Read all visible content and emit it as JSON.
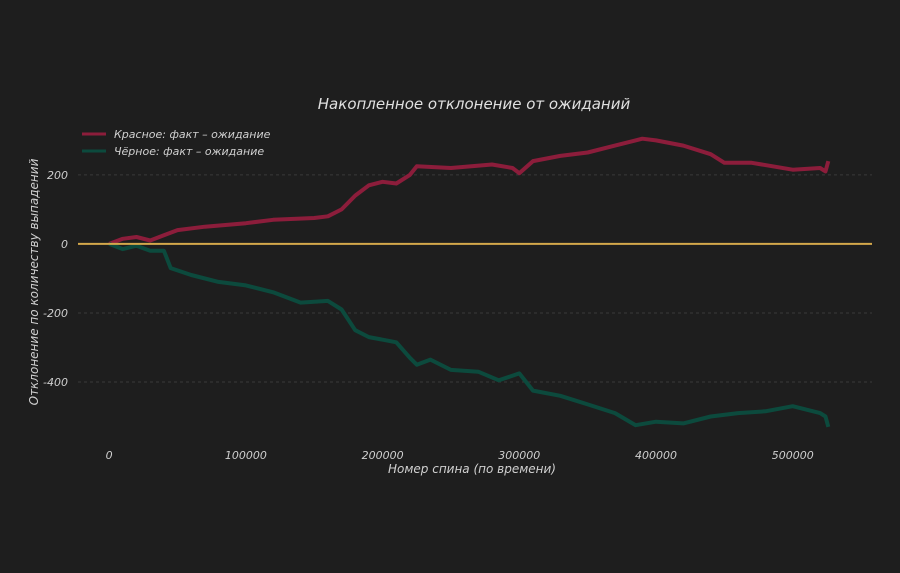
{
  "chart_data": {
    "type": "line",
    "title": "Накопленное отклонение от ожиданий",
    "xlabel": "Номер спина (по времени)",
    "ylabel": "Отклонение по количеству выпадений",
    "xlim": [
      -25000,
      558000
    ],
    "ylim": [
      -568,
      388
    ],
    "xticks": [
      0,
      100000,
      200000,
      300000,
      400000,
      500000
    ],
    "xtick_labels": [
      "0",
      "100000",
      "200000",
      "300000",
      "400000",
      "500000"
    ],
    "yticks": [
      200,
      0,
      -200,
      -400
    ],
    "ytick_labels": [
      "200",
      "0",
      "-200",
      "-400"
    ],
    "grid": "horizontal dashed",
    "legend_position": "top-left",
    "reference_line": {
      "y": 0,
      "color": "#d4a84b"
    },
    "series": [
      {
        "name": "Красное: факт – ожидание",
        "color": "#8c1d3b",
        "x": [
          0,
          10000,
          20000,
          30000,
          40000,
          50000,
          70000,
          100000,
          120000,
          150000,
          160000,
          170000,
          180000,
          190000,
          200000,
          210000,
          220000,
          225000,
          250000,
          280000,
          295000,
          300000,
          310000,
          330000,
          350000,
          370000,
          390000,
          400000,
          420000,
          440000,
          450000,
          470000,
          500000,
          520000,
          524000,
          526000
        ],
        "y": [
          0,
          15,
          20,
          10,
          25,
          40,
          50,
          60,
          70,
          75,
          80,
          100,
          140,
          170,
          180,
          175,
          200,
          225,
          220,
          230,
          220,
          205,
          240,
          255,
          265,
          285,
          305,
          300,
          285,
          260,
          235,
          235,
          215,
          220,
          210,
          240
        ]
      },
      {
        "name": "Чёрное: факт – ожидание",
        "color": "#0c4a3d",
        "x": [
          0,
          10000,
          20000,
          30000,
          40000,
          45000,
          60000,
          80000,
          100000,
          120000,
          140000,
          160000,
          170000,
          180000,
          190000,
          210000,
          220000,
          225000,
          235000,
          250000,
          270000,
          285000,
          300000,
          310000,
          330000,
          350000,
          370000,
          385000,
          400000,
          420000,
          440000,
          460000,
          480000,
          500000,
          520000,
          524000,
          526000
        ],
        "y": [
          0,
          -15,
          -5,
          -20,
          -20,
          -70,
          -90,
          -110,
          -120,
          -140,
          -170,
          -165,
          -190,
          -250,
          -270,
          -285,
          -330,
          -350,
          -335,
          -365,
          -370,
          -395,
          -375,
          -425,
          -440,
          -465,
          -490,
          -525,
          -515,
          -520,
          -500,
          -490,
          -485,
          -470,
          -490,
          -500,
          -530
        ]
      }
    ]
  }
}
